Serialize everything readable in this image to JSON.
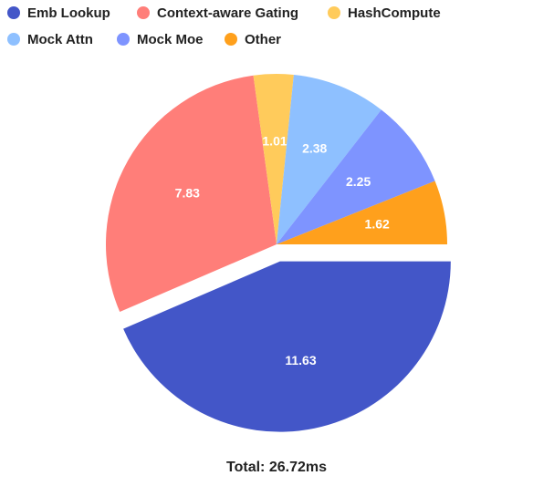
{
  "chart_data": {
    "type": "pie",
    "categories": [
      "Emb Lookup",
      "Context-aware Gating",
      "HashCompute",
      "Mock Attn",
      "Mock Moe",
      "Other"
    ],
    "values": [
      11.63,
      7.83,
      1.01,
      2.38,
      2.25,
      1.62
    ],
    "colors": [
      "#4356c8",
      "#ff7e79",
      "#ffcb5b",
      "#8ec0ff",
      "#7e94ff",
      "#ffa01c"
    ],
    "exploded": [
      true,
      false,
      false,
      false,
      false,
      false
    ],
    "total_label": "Total:  26.72ms"
  }
}
